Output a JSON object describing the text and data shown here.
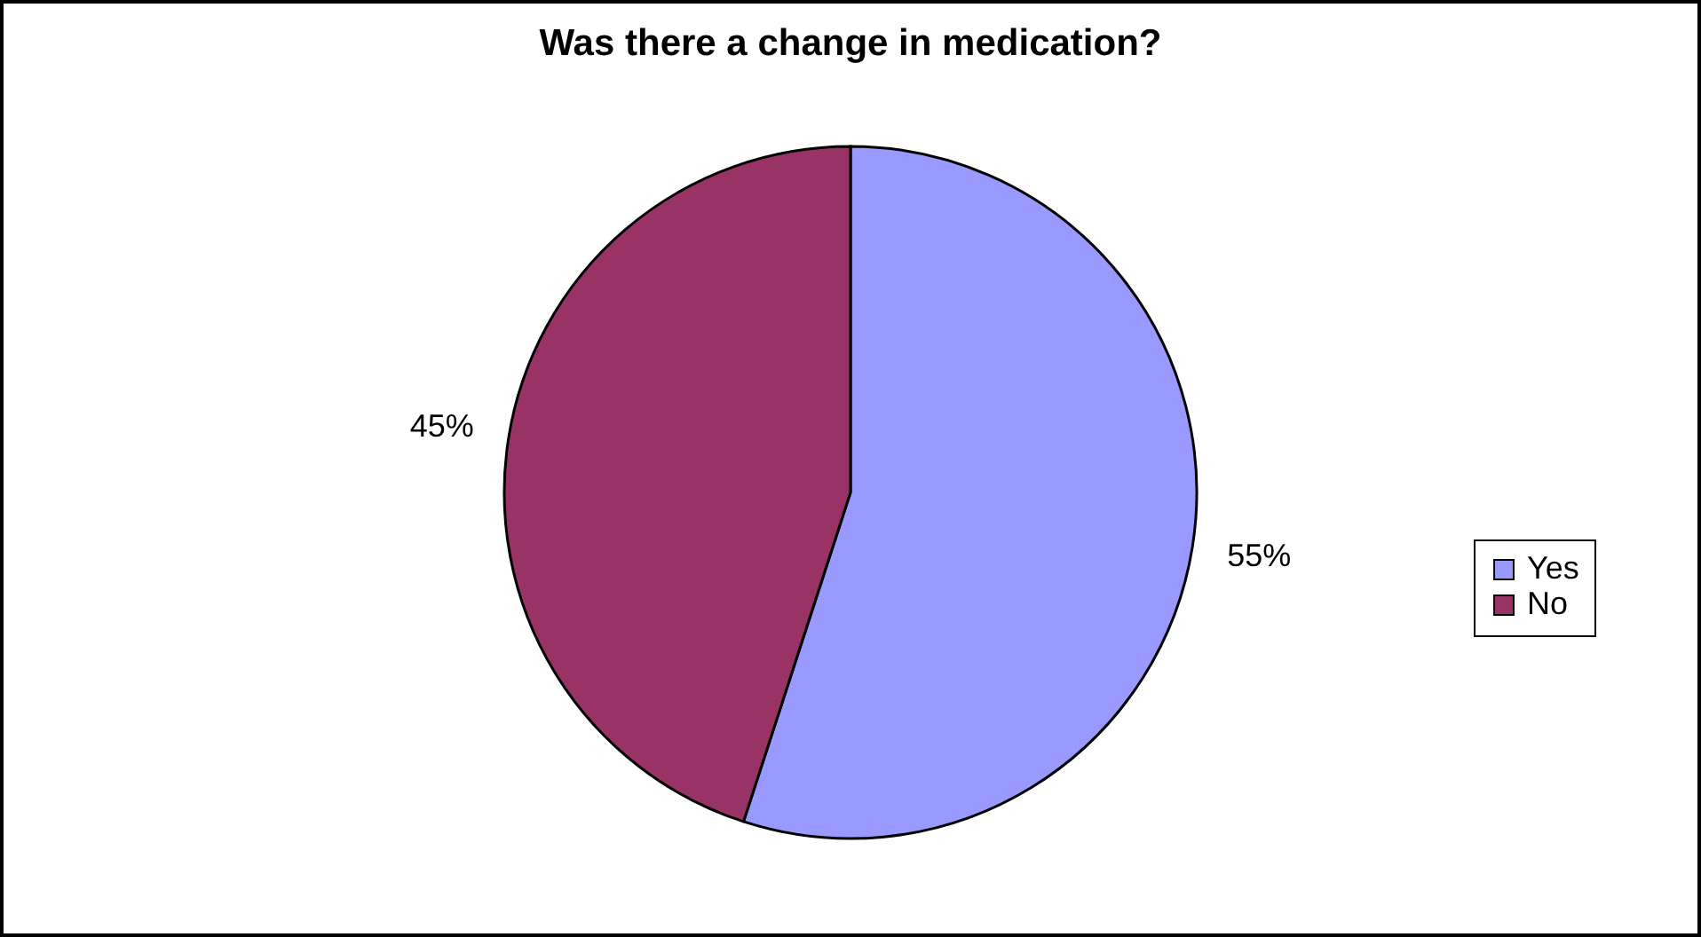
{
  "chart_data": {
    "type": "pie",
    "title": "Was there a change in medication?",
    "categories": [
      "Yes",
      "No"
    ],
    "values": [
      55,
      45
    ],
    "colors": [
      "#9999ff",
      "#993366"
    ],
    "value_labels": [
      "55%",
      "45%"
    ],
    "legend": "right"
  }
}
